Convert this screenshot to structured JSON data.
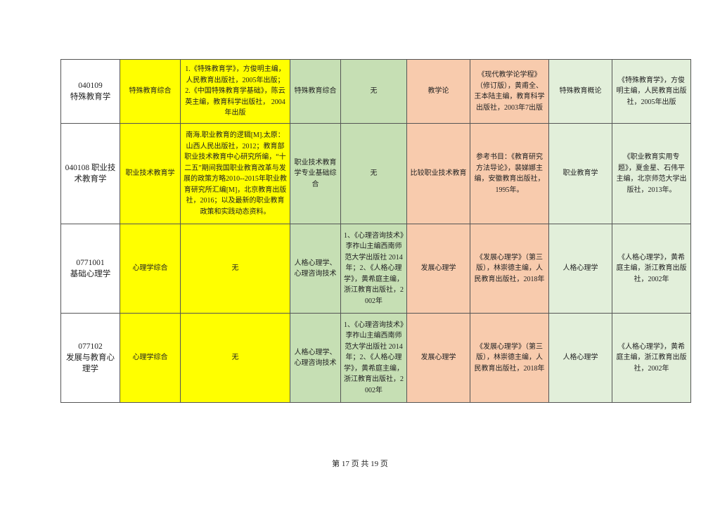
{
  "rows": [
    {
      "major": "040109\n特殊教育学",
      "exam1": "特殊教育综合",
      "exam1_books": "1.《特殊教育学》，方俊明主编，人民教育出版社，2005年出版；2.《中国特殊教育学基础》，陈云英主编，教育科学出版社， 2004年出版",
      "exam2": "特殊教育综合",
      "exam2_books": "无",
      "retest": "教学论",
      "retest_books": "《现代教学论学程》（修订版），黄甫全、王本陆主编，教育科学出版社，2003年7出版",
      "addon": "特殊教育概论",
      "addon_books": "《特殊教育学》，方俊明主编，人民教育出版社，2005年出版"
    },
    {
      "major": "040108 职业技术教育学",
      "exam1": "职业技术教育学",
      "exam1_books": "南海.职业教育的逻辑[M].太原：山西人民出版社，2012；教育部职业技术教育中心研究所编，“十二五”期间我国职业教育改革与发展的政策方略2010--2015年职业教育研究所汇编[M]，北京教育出版社，2016；以及最新的职业教育政策和实践动态资料。",
      "exam2": "职业技术教育学专业基础综合",
      "exam2_books": "无",
      "retest": "比较职业技术教育",
      "retest_books": "参考书目：《教育研究方法导论》，裴娣娜主编，安徽教育出版社，1995年。",
      "addon": "职业教育学",
      "addon_books": "《职业教育实用专题》，夏金星、石伟平主编，北京师范大学出版社，2013年。"
    },
    {
      "major": "0771001\n基础心理学",
      "exam1": "心理学综合",
      "exam1_books": "无",
      "exam2": "人格心理学、心理咨询技术",
      "exam2_books": "1、《心理咨询技术》李祚山主编西南师范大学出版社 2014年；2、《人格心理学》，黄希庭主编，浙江教育出版社，2002年",
      "retest": "发展心理学",
      "retest_books": "《发展心理学》（第三版），林崇德主编，人民教育出版社，2018年",
      "addon": "人格心理学",
      "addon_books": "《人格心理学》，黄希庭主编，浙江教育出版社，2002年"
    },
    {
      "major": "077102\n发展与教育心理学",
      "exam1": "心理学综合",
      "exam1_books": "无",
      "exam2": "人格心理学、心理咨询技术",
      "exam2_books": "1、《心理咨询技术》李祚山主编西南师范大学出版社 2014年；2、《人格心理学》，黄希庭主编，浙江教育出版社，2002年",
      "retest": "发展心理学",
      "retest_books": "《发展心理学》（第三版），林崇德主编，人民教育出版社，2018年",
      "addon": "人格心理学",
      "addon_books": "《人格心理学》，黄希庭主编，浙江教育出版社，2002年"
    }
  ],
  "footer": "第 17 页 共 19 页",
  "colors": {
    "yellow": "#ffff00",
    "green": "#c6dfb4",
    "salmon": "#f8cbad",
    "light_green": "#e2efda"
  }
}
